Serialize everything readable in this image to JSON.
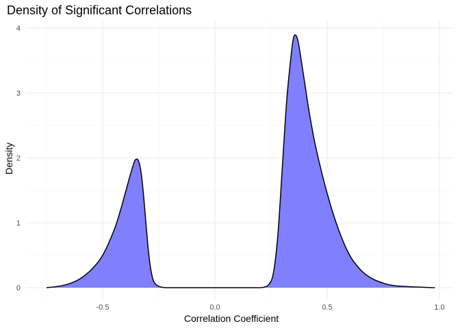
{
  "chart_data": {
    "type": "area",
    "title": "Density of Significant Correlations",
    "xlabel": "Correlation Coefficient",
    "ylabel": "Density",
    "xlim": [
      -0.76,
      0.98
    ],
    "ylim": [
      0,
      4.0
    ],
    "x_ticks": [
      -0.5,
      0.0,
      0.5,
      1.0
    ],
    "x_tick_labels": [
      "-0.5",
      "0.0",
      "0.5",
      "1.0"
    ],
    "y_ticks": [
      0,
      1,
      2,
      3,
      4
    ],
    "y_tick_labels": [
      "0",
      "1",
      "2",
      "3",
      "4"
    ],
    "grid": true,
    "legend": "none",
    "fill_color": "#8080ff",
    "line_color": "#000000",
    "series": [
      {
        "x": [
          -0.75,
          -0.7,
          -0.65,
          -0.6,
          -0.55,
          -0.5,
          -0.45,
          -0.42,
          -0.4,
          -0.38,
          -0.36,
          -0.35,
          -0.34,
          -0.33,
          -0.32,
          -0.31,
          -0.3,
          -0.29,
          -0.28,
          -0.27,
          -0.25,
          -0.22,
          -0.15,
          0.0,
          0.15,
          0.2,
          0.22,
          0.24,
          0.26,
          0.28,
          0.3,
          0.32,
          0.34,
          0.35,
          0.36,
          0.37,
          0.38,
          0.4,
          0.42,
          0.45,
          0.5,
          0.55,
          0.6,
          0.65,
          0.7,
          0.75,
          0.8,
          0.9,
          0.98
        ],
        "y": [
          0.0,
          0.02,
          0.06,
          0.14,
          0.28,
          0.5,
          0.88,
          1.2,
          1.45,
          1.7,
          1.93,
          1.98,
          1.95,
          1.8,
          1.5,
          1.1,
          0.7,
          0.38,
          0.18,
          0.08,
          0.02,
          0.0,
          0.0,
          0.0,
          0.0,
          0.0,
          0.01,
          0.05,
          0.22,
          0.8,
          1.85,
          2.9,
          3.6,
          3.85,
          3.89,
          3.8,
          3.6,
          3.15,
          2.7,
          2.15,
          1.45,
          0.9,
          0.5,
          0.27,
          0.14,
          0.07,
          0.03,
          0.01,
          0.0
        ]
      }
    ]
  }
}
